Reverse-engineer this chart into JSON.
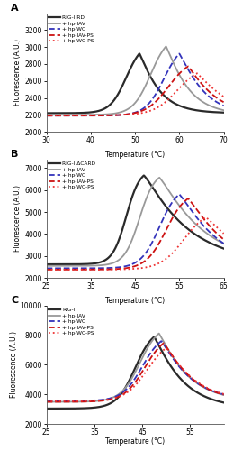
{
  "panels": [
    {
      "label": "A",
      "top_title": "",
      "xlabel": "Temperature (°C)",
      "ylabel": "Fluorescence (A.U.)",
      "xlim": [
        30,
        70
      ],
      "ylim": [
        2000,
        3400
      ],
      "yticks": [
        2000,
        2200,
        2400,
        2600,
        2800,
        3000,
        3200
      ],
      "xticks": [
        30,
        40,
        50,
        60,
        70
      ],
      "show_xlabel": false,
      "series": [
        {
          "label": "RIG-I RD",
          "color": "#2a2a2a",
          "linestyle": "-",
          "linewidth": 1.6,
          "tm": 48.0,
          "ybase": 2220,
          "ymax": 3060,
          "slope_up": 0.55,
          "slope_down": 0.25,
          "x_peak": 51.0
        },
        {
          "label": "+ hp-IAV",
          "color": "#999999",
          "linestyle": "-",
          "linewidth": 1.3,
          "tm": 53.5,
          "ybase": 2200,
          "ymax": 3150,
          "slope_up": 0.5,
          "slope_down": 0.22,
          "x_peak": 57.0
        },
        {
          "label": "+ hp-WC",
          "color": "#3333bb",
          "linestyle": "--",
          "linewidth": 1.3,
          "tm": 56.5,
          "ybase": 2190,
          "ymax": 3060,
          "slope_up": 0.48,
          "slope_down": 0.2,
          "x_peak": 60.0
        },
        {
          "label": "+ hp-IAV-PS",
          "color": "#cc1111",
          "linestyle": "--",
          "linewidth": 1.3,
          "tm": 57.5,
          "ybase": 2190,
          "ymax": 2870,
          "slope_up": 0.4,
          "slope_down": 0.18,
          "x_peak": 62.0
        },
        {
          "label": "+ hp-WC-PS",
          "color": "#ee3333",
          "linestyle": ":",
          "linewidth": 1.3,
          "tm": 59.5,
          "ybase": 2195,
          "ymax": 2780,
          "slope_up": 0.38,
          "slope_down": 0.16,
          "x_peak": 64.0
        }
      ]
    },
    {
      "label": "B",
      "top_title": "Temperature (°C)",
      "xlabel": "Temperature (°C)",
      "ylabel": "Fluorescence (A.U.)",
      "xlim": [
        25,
        65
      ],
      "ylim": [
        2000,
        7400
      ],
      "yticks": [
        2000,
        3000,
        4000,
        5000,
        6000,
        7000
      ],
      "xticks": [
        25,
        35,
        45,
        55,
        65
      ],
      "show_xlabel": false,
      "series": [
        {
          "label": "RIG-I ΔCARD",
          "color": "#2a2a2a",
          "linestyle": "-",
          "linewidth": 1.6,
          "tm": 43.0,
          "ybase": 2620,
          "ymax": 6970,
          "slope_up": 0.65,
          "slope_down": 0.1,
          "x_peak": 47.0
        },
        {
          "label": "+ hp-IAV",
          "color": "#999999",
          "linestyle": "-",
          "linewidth": 1.3,
          "tm": 46.0,
          "ybase": 2550,
          "ymax": 6870,
          "slope_up": 0.58,
          "slope_down": 0.1,
          "x_peak": 50.5
        },
        {
          "label": "+ hp-WC",
          "color": "#3333bb",
          "linestyle": "--",
          "linewidth": 1.3,
          "tm": 50.5,
          "ybase": 2440,
          "ymax": 6200,
          "slope_up": 0.48,
          "slope_down": 0.12,
          "x_peak": 55.0
        },
        {
          "label": "+ hp-IAV-PS",
          "color": "#cc1111",
          "linestyle": "--",
          "linewidth": 1.3,
          "tm": 52.0,
          "ybase": 2380,
          "ymax": 5980,
          "slope_up": 0.44,
          "slope_down": 0.12,
          "x_peak": 57.0
        },
        {
          "label": "+ hp-WC-PS",
          "color": "#ee3333",
          "linestyle": ":",
          "linewidth": 1.3,
          "tm": 56.0,
          "ybase": 2380,
          "ymax": 5120,
          "slope_up": 0.38,
          "slope_down": 0.12,
          "x_peak": 61.0
        }
      ]
    },
    {
      "label": "C",
      "top_title": "Temperature (°C)",
      "xlabel": "Temperature (°C)",
      "ylabel": "Fluorescence (A.U.)",
      "xlim": [
        25,
        62
      ],
      "ylim": [
        2000,
        10000
      ],
      "yticks": [
        2000,
        4000,
        6000,
        8000,
        10000
      ],
      "xticks": [
        25,
        35,
        45,
        55
      ],
      "show_xlabel": true,
      "series": [
        {
          "label": "RIG-I",
          "color": "#2a2a2a",
          "linestyle": "-",
          "linewidth": 1.6,
          "tm": 43.5,
          "ybase": 3050,
          "ymax": 8500,
          "slope_up": 0.52,
          "slope_down": 0.18,
          "x_peak": 47.5
        },
        {
          "label": "+ hp-IAV",
          "color": "#999999",
          "linestyle": "-",
          "linewidth": 1.3,
          "tm": 44.5,
          "ybase": 3500,
          "ymax": 8750,
          "slope_up": 0.5,
          "slope_down": 0.18,
          "x_peak": 48.5
        },
        {
          "label": "+ hp-WC",
          "color": "#3333bb",
          "linestyle": "--",
          "linewidth": 1.3,
          "tm": 45.0,
          "ybase": 3560,
          "ymax": 8200,
          "slope_up": 0.48,
          "slope_down": 0.18,
          "x_peak": 49.0
        },
        {
          "label": "+ hp-IAV-PS",
          "color": "#cc1111",
          "linestyle": "--",
          "linewidth": 1.3,
          "tm": 45.5,
          "ybase": 3500,
          "ymax": 8100,
          "slope_up": 0.46,
          "slope_down": 0.18,
          "x_peak": 49.5
        },
        {
          "label": "+ hp-WC-PS",
          "color": "#ee3333",
          "linestyle": ":",
          "linewidth": 1.3,
          "tm": 46.0,
          "ybase": 3550,
          "ymax": 7750,
          "slope_up": 0.44,
          "slope_down": 0.18,
          "x_peak": 50.0
        }
      ]
    }
  ]
}
